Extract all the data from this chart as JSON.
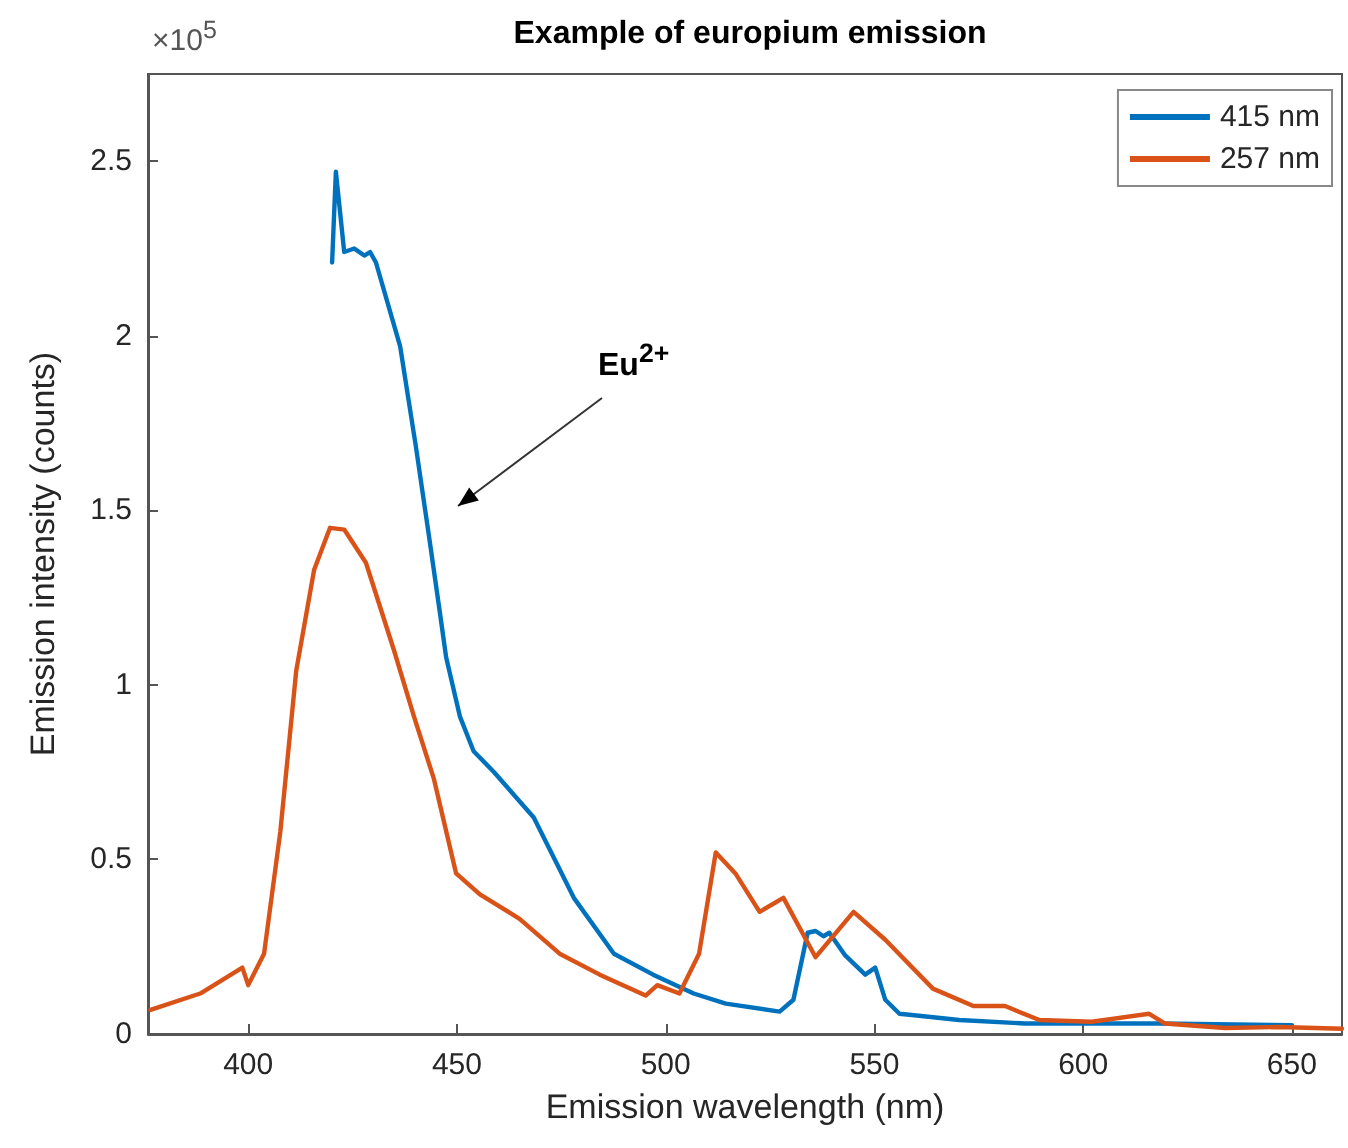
{
  "chart_data": {
    "type": "line",
    "title": "Example of europium emission",
    "xlabel": "Emission wavelength (nm)",
    "ylabel": "Emission intensity (counts)",
    "xlim": [
      376,
      662
    ],
    "xticks": [
      400,
      450,
      500,
      550,
      600,
      650
    ],
    "ylim": [
      0,
      2.75
    ],
    "yticks": [
      0,
      0.5,
      1,
      1.5,
      2,
      2.5
    ],
    "series": [
      {
        "name": "415 nm",
        "color": "#0072bd",
        "x": [
          420.1,
          421,
          423,
          425.4,
          427.8,
          429.2,
          430.6,
          436.4,
          440.2,
          443.5,
          446,
          447.4,
          450.7,
          454,
          458.9,
          468.4,
          478,
          487.6,
          497,
          506.7,
          514.4,
          527.3,
          530.6,
          534,
          535.9,
          537.8,
          539.2,
          543,
          547.8,
          550.2,
          552.6,
          556,
          570.3,
          586,
          618,
          650
        ],
        "values": [
          2.21,
          2.47,
          2.24,
          2.25,
          2.23,
          2.24,
          2.21,
          1.97,
          1.68,
          1.41,
          1.2,
          1.08,
          0.91,
          0.81,
          0.75,
          0.62,
          0.39,
          0.23,
          0.17,
          0.116,
          0.087,
          0.064,
          0.098,
          0.29,
          0.295,
          0.28,
          0.29,
          0.225,
          0.17,
          0.19,
          0.098,
          0.058,
          0.04,
          0.03,
          0.03,
          0.025
        ]
      },
      {
        "name": "257 nm",
        "color": "#d95319",
        "x": [
          376.6,
          388.5,
          398.6,
          400,
          403.8,
          407.7,
          411.5,
          415.8,
          419.6,
          423,
          428.2,
          434.9,
          439.7,
          444.5,
          449.8,
          455.5,
          465,
          474.6,
          484.2,
          495.2,
          498,
          503.3,
          508,
          512,
          516.7,
          522.5,
          528.2,
          535.9,
          545,
          552.6,
          564,
          573.7,
          581.3,
          589.5,
          602,
          615.8,
          619.6,
          634,
          647,
          662
        ],
        "values": [
          0.069,
          0.116,
          0.19,
          0.14,
          0.23,
          0.58,
          1.04,
          1.33,
          1.45,
          1.445,
          1.35,
          1.1,
          0.91,
          0.73,
          0.46,
          0.4,
          0.33,
          0.23,
          0.17,
          0.11,
          0.14,
          0.116,
          0.23,
          0.52,
          0.46,
          0.35,
          0.39,
          0.22,
          0.35,
          0.27,
          0.13,
          0.08,
          0.08,
          0.04,
          0.035,
          0.058,
          0.03,
          0.017,
          0.02,
          0.015
        ]
      }
    ],
    "legend": "top right",
    "grid": false,
    "marker": "none",
    "line_style": "solid",
    "annotations": [
      "×10$^{5}$",
      "Eu$^{2+}$"
    ]
  }
}
